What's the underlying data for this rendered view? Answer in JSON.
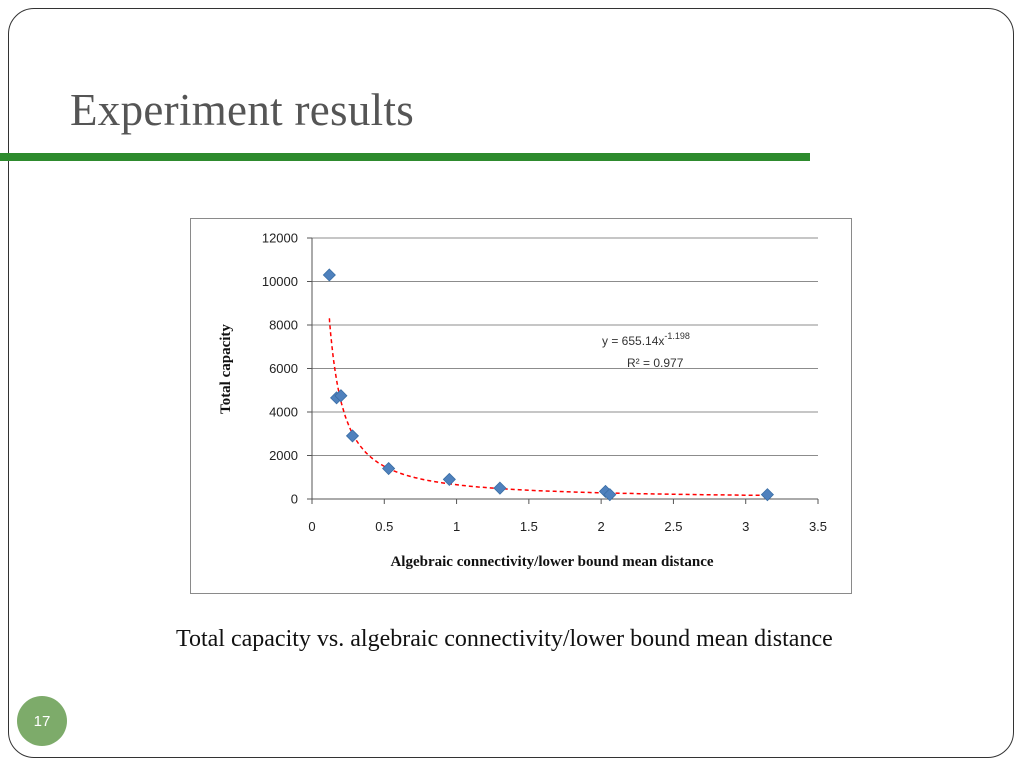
{
  "slide": {
    "title": "Experiment results",
    "caption": "Total capacity vs. algebraic connectivity/lower bound mean distance",
    "page_number": "17",
    "accent_color": "#2e8b2e",
    "badge_color": "#7dab6a"
  },
  "chart_data": {
    "type": "scatter",
    "title": "",
    "xlabel": "Algebraic connectivity/lower bound mean distance",
    "ylabel": "Total capacity",
    "xlim": [
      0,
      3.5
    ],
    "ylim": [
      0,
      12000
    ],
    "x_ticks": [
      "0",
      "0.5",
      "1",
      "1.5",
      "2",
      "2.5",
      "3",
      "3.5"
    ],
    "y_ticks": [
      "0",
      "2000",
      "4000",
      "6000",
      "8000",
      "10000",
      "12000"
    ],
    "grid": "horizontal",
    "marker_color": "#4f81bd",
    "trend_color": "#ff0000",
    "points": [
      {
        "x": 0.12,
        "y": 10300
      },
      {
        "x": 0.17,
        "y": 4650
      },
      {
        "x": 0.2,
        "y": 4750
      },
      {
        "x": 0.28,
        "y": 2900
      },
      {
        "x": 0.53,
        "y": 1400
      },
      {
        "x": 0.95,
        "y": 900
      },
      {
        "x": 1.3,
        "y": 500
      },
      {
        "x": 2.03,
        "y": 350
      },
      {
        "x": 2.06,
        "y": 200
      },
      {
        "x": 3.15,
        "y": 200
      }
    ],
    "trendline": {
      "equation": "y = 655.14x",
      "exponent": "-1.198",
      "r_squared": "R² = 0.977",
      "coef": 655.14,
      "power": -1.198,
      "x_range": [
        0.12,
        3.15
      ]
    }
  }
}
